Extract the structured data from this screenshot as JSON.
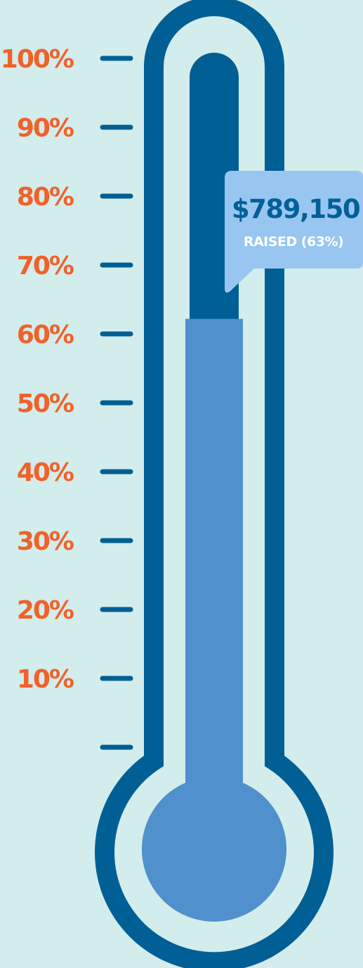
{
  "chart_data": {
    "type": "thermometer",
    "value_percent": 63,
    "ylim": [
      0,
      100
    ],
    "tick_values": [
      100,
      90,
      80,
      70,
      60,
      50,
      40,
      30,
      20,
      10
    ],
    "tick_labels": [
      "100%",
      "90%",
      "80%",
      "70%",
      "60%",
      "50%",
      "40%",
      "30%",
      "20%",
      "10%"
    ],
    "raised_amount": "$789,150",
    "raised_label": "RAISED (63%)"
  },
  "colors": {
    "background": "#d3ecec",
    "outline": "#005f94",
    "fill": "#5090cc",
    "callout": "#99c6f0",
    "callout_text": "#00609a",
    "callout_subtext": "#ffffff",
    "label": "#f0622a"
  }
}
